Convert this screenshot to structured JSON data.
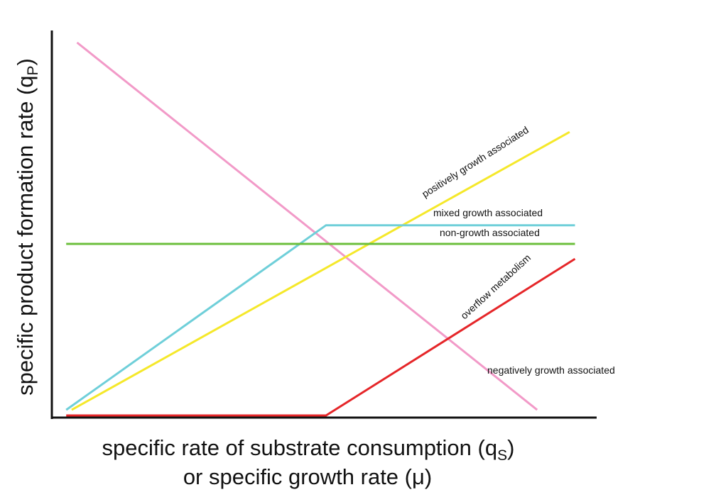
{
  "chart_data": {
    "type": "line",
    "xlabel_line1": "specific rate of substrate consumption (q",
    "xlabel_line1_sub": "S",
    "xlabel_line1_end": ")",
    "xlabel_line2": "or specific growth rate (μ)",
    "ylabel": "specific product formation rate (q",
    "ylabel_sub": "P",
    "ylabel_end": ")",
    "xlim": [
      0,
      100
    ],
    "ylim": [
      0,
      100
    ],
    "axis_ticks": false,
    "grid": false,
    "series": [
      {
        "key": "negative",
        "label": "negatively growth associated",
        "color": "#f29ac8",
        "x": [
          4,
          89
        ],
        "y": [
          100,
          1.5
        ]
      },
      {
        "key": "positive",
        "label": "positively growth associated",
        "color": "#f5e82a",
        "x": [
          3,
          95
        ],
        "y": [
          1.5,
          76
        ]
      },
      {
        "key": "mixed",
        "label": "mixed growth associated",
        "color": "#6fcfd9",
        "x": [
          2,
          50,
          96
        ],
        "y": [
          1.5,
          51,
          51
        ]
      },
      {
        "key": "nongrowth",
        "label": "non-growth associated",
        "color": "#6cbf3c",
        "x": [
          2,
          96
        ],
        "y": [
          46,
          46
        ]
      },
      {
        "key": "overflow",
        "label": "overflow metabolism",
        "color": "#e52629",
        "x": [
          2,
          50,
          96
        ],
        "y": [
          0,
          0,
          42
        ]
      }
    ]
  }
}
